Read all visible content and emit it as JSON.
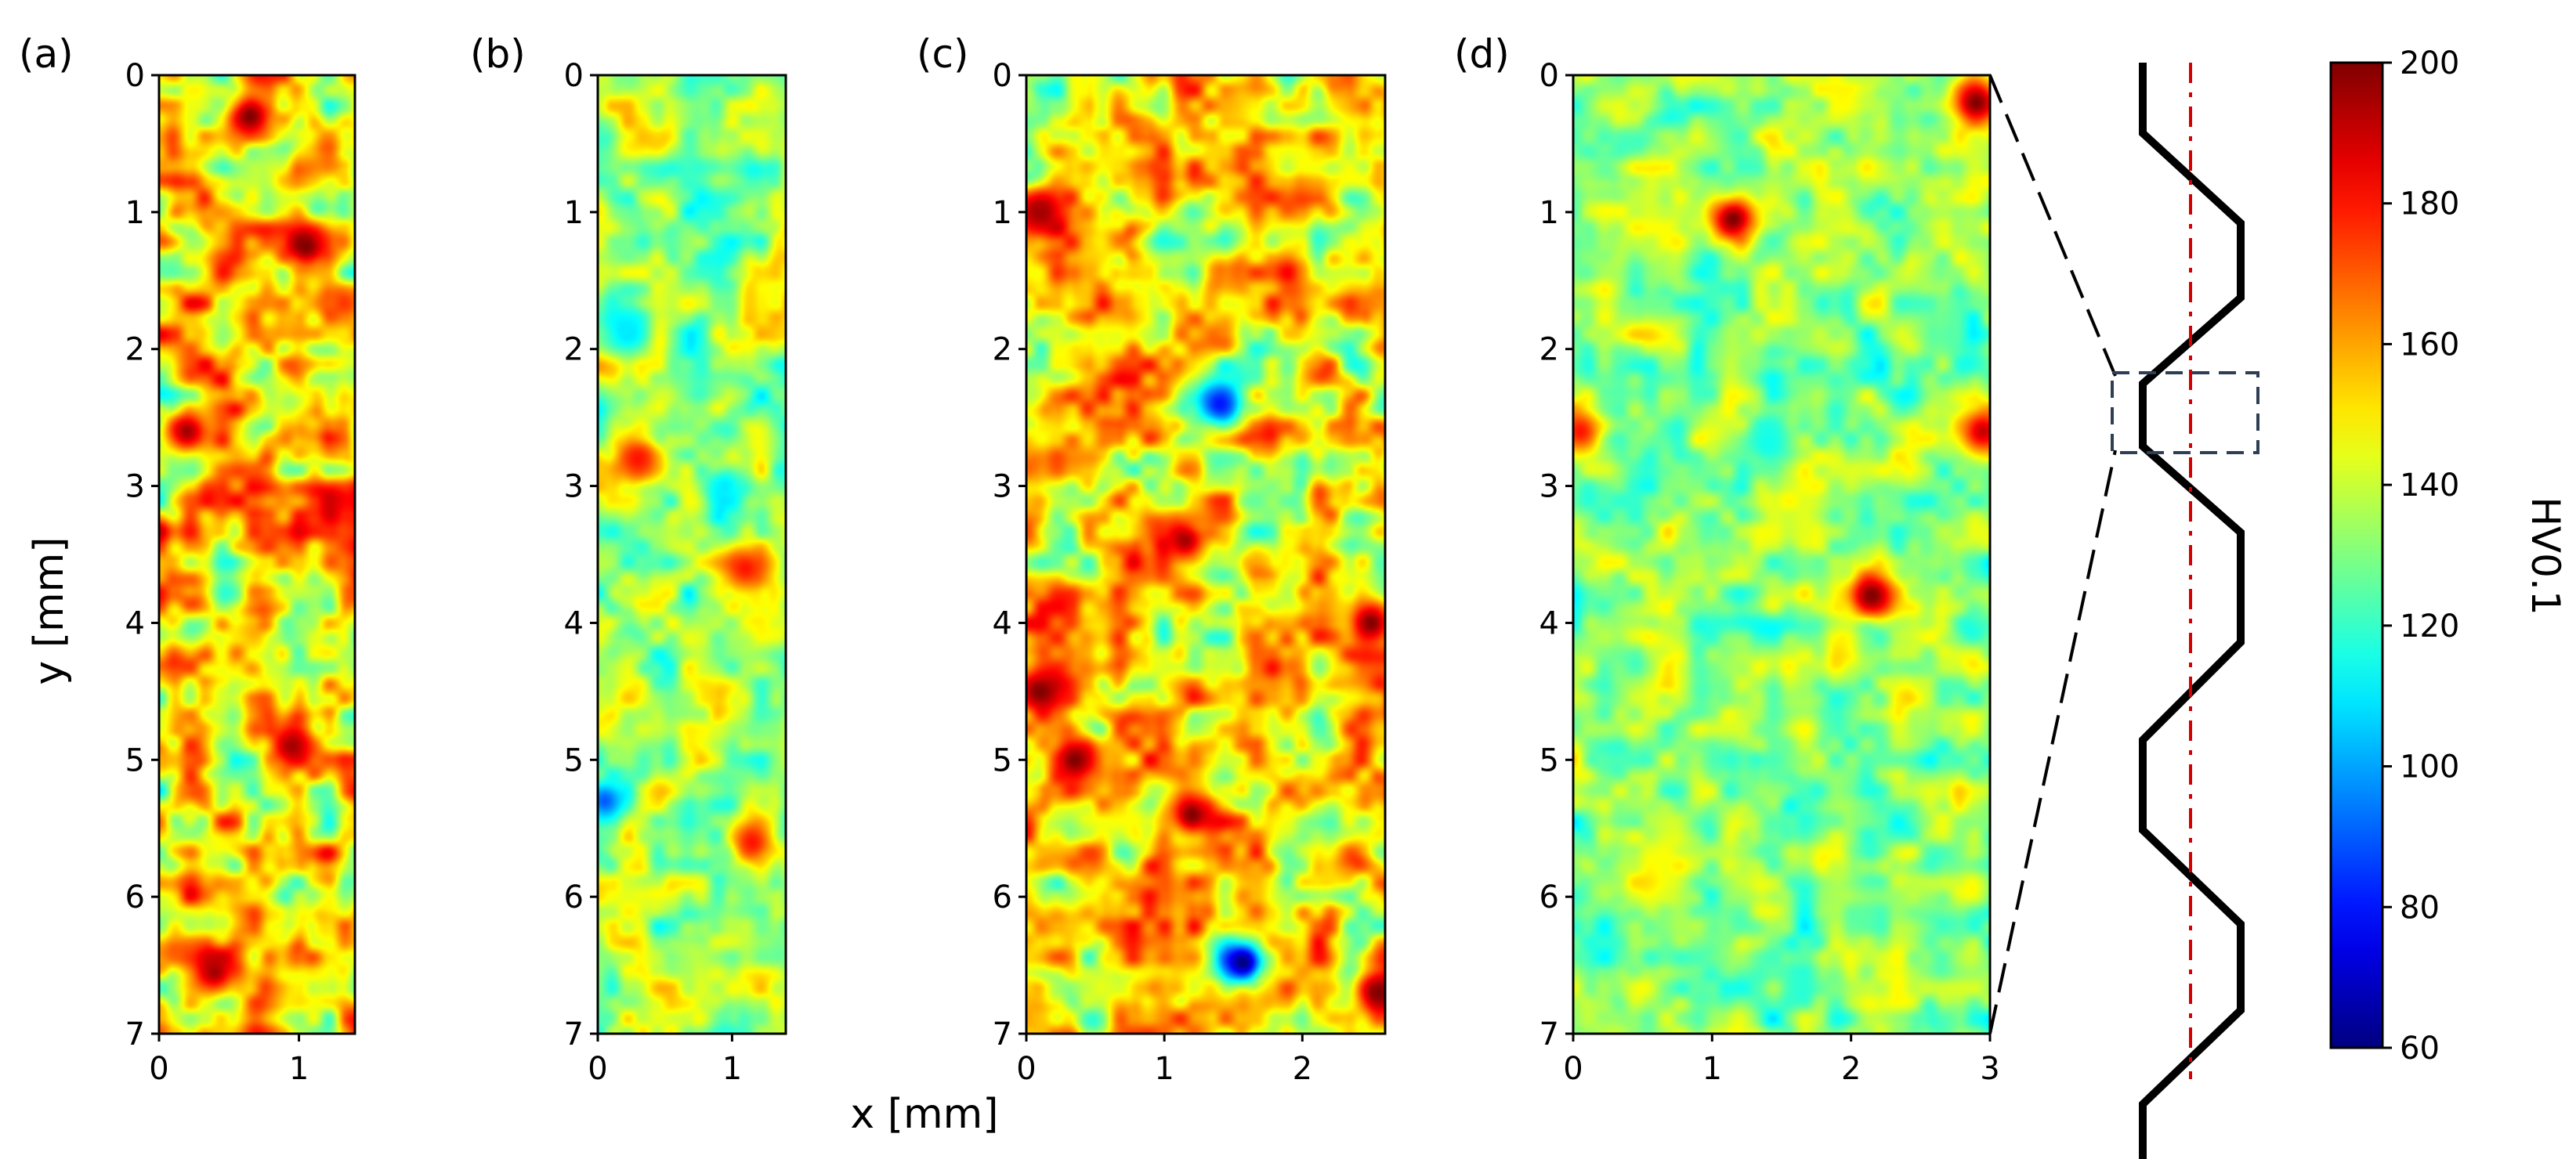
{
  "chart_data": [
    {
      "type": "heatmap",
      "panel_label": "(a)",
      "x_range_mm": [
        0,
        1.4
      ],
      "y_range_mm": [
        0,
        7
      ],
      "y_inverted": true,
      "xticks": [
        "0",
        "1"
      ],
      "yticks": [
        "0",
        "1",
        "2",
        "3",
        "4",
        "5",
        "6",
        "7"
      ],
      "ylabel": "y [mm]",
      "hardness_mean_HV": 150,
      "hardness_spread_HV": 45,
      "hot_spots": [
        {
          "x": 0.65,
          "y": 0.3,
          "hv": 200
        },
        {
          "x": 1.05,
          "y": 1.25,
          "hv": 200
        },
        {
          "x": 0.2,
          "y": 2.6,
          "hv": 195
        },
        {
          "x": 0.95,
          "y": 4.9,
          "hv": 195
        },
        {
          "x": 0.4,
          "y": 6.55,
          "hv": 195
        }
      ]
    },
    {
      "type": "heatmap",
      "panel_label": "(b)",
      "x_range_mm": [
        0,
        1.4
      ],
      "y_range_mm": [
        0,
        7
      ],
      "y_inverted": true,
      "xticks": [
        "0",
        "1"
      ],
      "yticks": [
        "0",
        "1",
        "2",
        "3",
        "4",
        "5",
        "6",
        "7"
      ],
      "hardness_mean_HV": 135,
      "hardness_spread_HV": 30,
      "hot_spots": [
        {
          "x": 0.3,
          "y": 2.8,
          "hv": 180
        },
        {
          "x": 1.1,
          "y": 3.6,
          "hv": 180
        },
        {
          "x": 1.15,
          "y": 5.6,
          "hv": 180
        }
      ],
      "cold_spots": [
        {
          "x": 0.05,
          "y": 5.3,
          "hv": 90
        },
        {
          "x": 0.2,
          "y": 1.85,
          "hv": 110
        },
        {
          "x": 0.95,
          "y": 3.0,
          "hv": 110
        }
      ]
    },
    {
      "type": "heatmap",
      "panel_label": "(c)",
      "x_range_mm": [
        0,
        2.6
      ],
      "y_range_mm": [
        0,
        7
      ],
      "y_inverted": true,
      "xticks": [
        "0",
        "1",
        "2"
      ],
      "yticks": [
        "0",
        "1",
        "2",
        "3",
        "4",
        "5",
        "6",
        "7"
      ],
      "xlabel": "x [mm]",
      "hardness_mean_HV": 150,
      "hardness_spread_HV": 40,
      "hot_spots": [
        {
          "x": 0.1,
          "y": 1.0,
          "hv": 195
        },
        {
          "x": 0.1,
          "y": 4.5,
          "hv": 200
        },
        {
          "x": 2.5,
          "y": 4.0,
          "hv": 200
        },
        {
          "x": 1.2,
          "y": 5.4,
          "hv": 200
        },
        {
          "x": 0.35,
          "y": 5.0,
          "hv": 200
        },
        {
          "x": 2.55,
          "y": 6.7,
          "hv": 200
        },
        {
          "x": 1.15,
          "y": 3.4,
          "hv": 195
        }
      ],
      "cold_spots": [
        {
          "x": 1.4,
          "y": 2.4,
          "hv": 80
        },
        {
          "x": 1.57,
          "y": 6.48,
          "hv": 60
        }
      ]
    },
    {
      "type": "heatmap",
      "panel_label": "(d)",
      "x_range_mm": [
        0,
        3
      ],
      "y_range_mm": [
        0,
        7
      ],
      "y_inverted": true,
      "xticks": [
        "0",
        "1",
        "2",
        "3"
      ],
      "yticks": [
        "0",
        "1",
        "2",
        "3",
        "4",
        "5",
        "6",
        "7"
      ],
      "hardness_mean_HV": 132,
      "hardness_spread_HV": 25,
      "hot_spots": [
        {
          "x": 2.9,
          "y": 0.2,
          "hv": 200
        },
        {
          "x": 1.15,
          "y": 1.05,
          "hv": 200
        },
        {
          "x": 2.15,
          "y": 3.8,
          "hv": 200
        },
        {
          "x": 0.05,
          "y": 2.6,
          "hv": 180
        },
        {
          "x": 2.95,
          "y": 2.6,
          "hv": 190
        }
      ],
      "cold_spots": [
        {
          "x": 1.4,
          "y": 2.7,
          "hv": 115
        }
      ]
    },
    {
      "type": "colorbar",
      "colormap": "jet",
      "label": "HV0.1",
      "range": [
        60,
        200
      ],
      "ticks": [
        "60",
        "80",
        "100",
        "120",
        "140",
        "160",
        "180",
        "200"
      ]
    }
  ]
}
